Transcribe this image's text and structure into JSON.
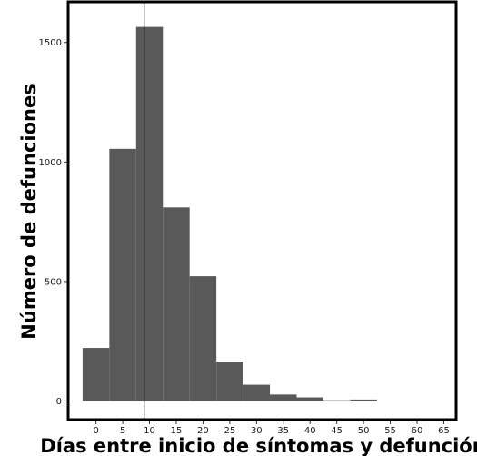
{
  "chart_data": {
    "type": "bar",
    "title": "",
    "xlabel": "Días entre inicio de síntomas y defunción",
    "ylabel": "Número de defunciones",
    "bin_width": 5,
    "bins": [
      {
        "x0": -2.5,
        "x1": 2.5,
        "count": 222
      },
      {
        "x0": 2.5,
        "x1": 7.5,
        "count": 1055
      },
      {
        "x0": 7.5,
        "x1": 12.5,
        "count": 1565
      },
      {
        "x0": 12.5,
        "x1": 17.5,
        "count": 810
      },
      {
        "x0": 17.5,
        "x1": 22.5,
        "count": 522
      },
      {
        "x0": 22.5,
        "x1": 27.5,
        "count": 165
      },
      {
        "x0": 27.5,
        "x1": 32.5,
        "count": 68
      },
      {
        "x0": 32.5,
        "x1": 37.5,
        "count": 27
      },
      {
        "x0": 37.5,
        "x1": 42.5,
        "count": 15
      },
      {
        "x0": 42.5,
        "x1": 47.5,
        "count": 3
      },
      {
        "x0": 47.5,
        "x1": 52.5,
        "count": 6
      }
    ],
    "vline_x": 9,
    "xlim": [
      -5.2,
      67.3
    ],
    "ylim": [
      -78,
      1670
    ],
    "xticks": [
      0,
      5,
      10,
      15,
      20,
      25,
      30,
      35,
      40,
      45,
      50,
      55,
      60,
      65
    ],
    "xtick_labels": [
      "0",
      "5",
      "10",
      "15",
      "20",
      "25",
      "30",
      "35",
      "40",
      "45",
      "50",
      "55",
      "60",
      "65"
    ],
    "yticks": [
      0,
      500,
      1000,
      1500
    ],
    "ytick_labels": [
      "0",
      "500",
      "1000",
      "1500"
    ],
    "grid": false,
    "colors": {
      "bar": "#595959",
      "vline": "#000000",
      "frame": "#000000"
    }
  }
}
